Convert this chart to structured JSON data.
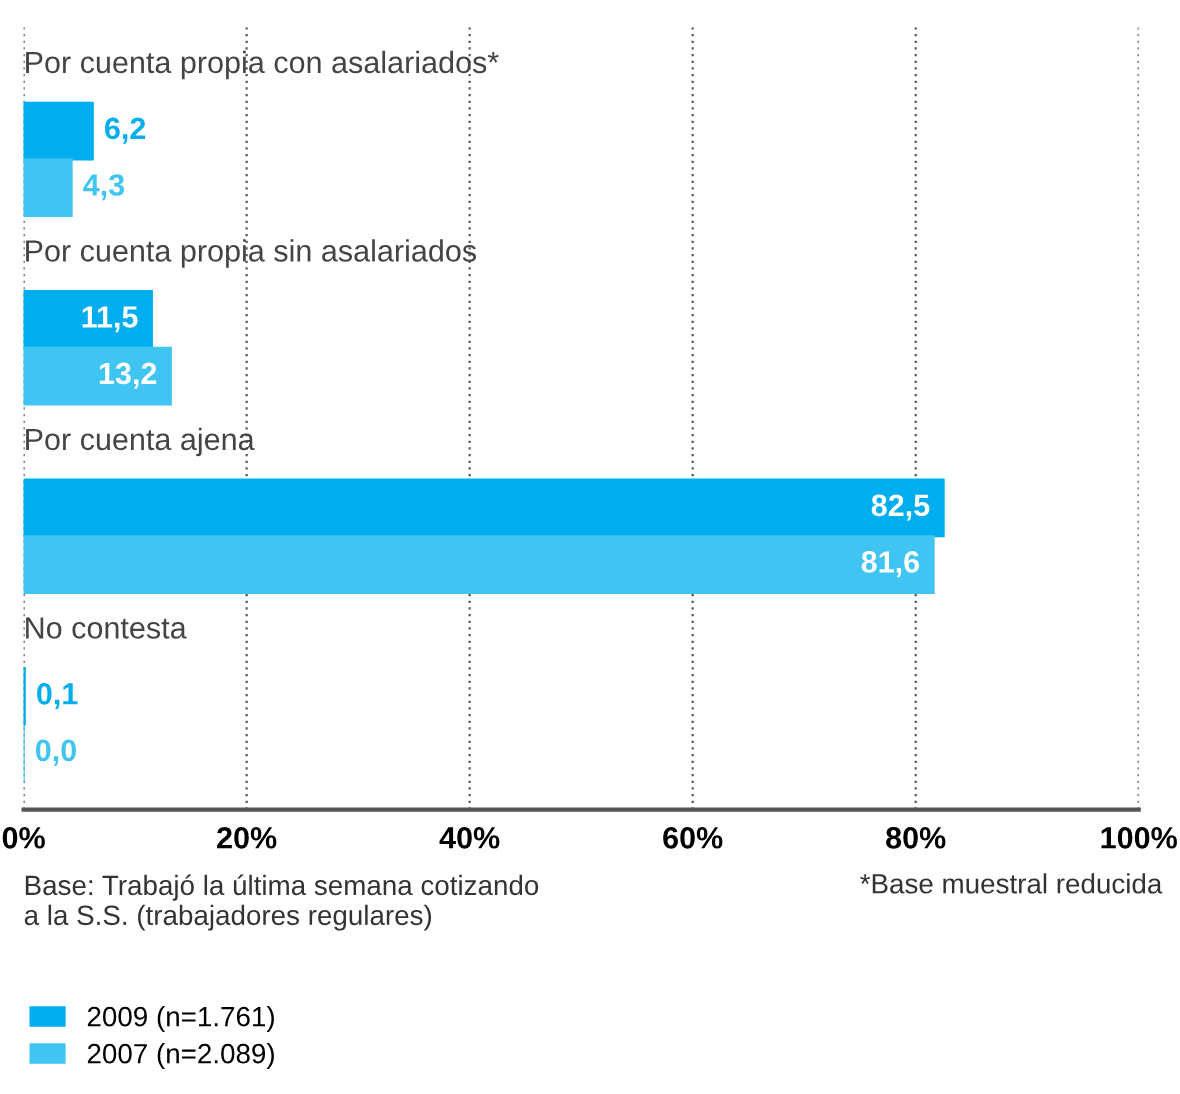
{
  "chart_data": {
    "type": "bar",
    "orientation": "horizontal",
    "categories": [
      "Por cuenta propia con asalariados*",
      "Por cuenta propia sin asalariados",
      "Por cuenta ajena",
      "No contesta"
    ],
    "series": [
      {
        "name": "2009 (n=1.761)",
        "color": "#00aeef",
        "values": [
          6.2,
          11.5,
          82.5,
          0.1
        ],
        "value_labels": [
          "6,2",
          "11,5",
          "82,5",
          "0,1"
        ]
      },
      {
        "name": "2007 (n=2.089)",
        "color": "#40c4f2",
        "values": [
          4.3,
          13.2,
          81.6,
          0.0
        ],
        "value_labels": [
          "4,3",
          "13,2",
          "81,6",
          "0,0"
        ]
      }
    ],
    "xlim": [
      0,
      100
    ],
    "xticks": [
      {
        "value": 0,
        "label": "0%"
      },
      {
        "value": 20,
        "label": "20%"
      },
      {
        "value": 40,
        "label": "40%"
      },
      {
        "value": 60,
        "label": "60%"
      },
      {
        "value": 80,
        "label": "80%"
      },
      {
        "value": 100,
        "label": "100%"
      }
    ],
    "grid": "x",
    "legend": "bottom left",
    "annotations": [
      "Base: Trabajó la última semana cotizando\na la S.S. (trabajadores regulares)",
      "*Base muestral reducida"
    ]
  }
}
